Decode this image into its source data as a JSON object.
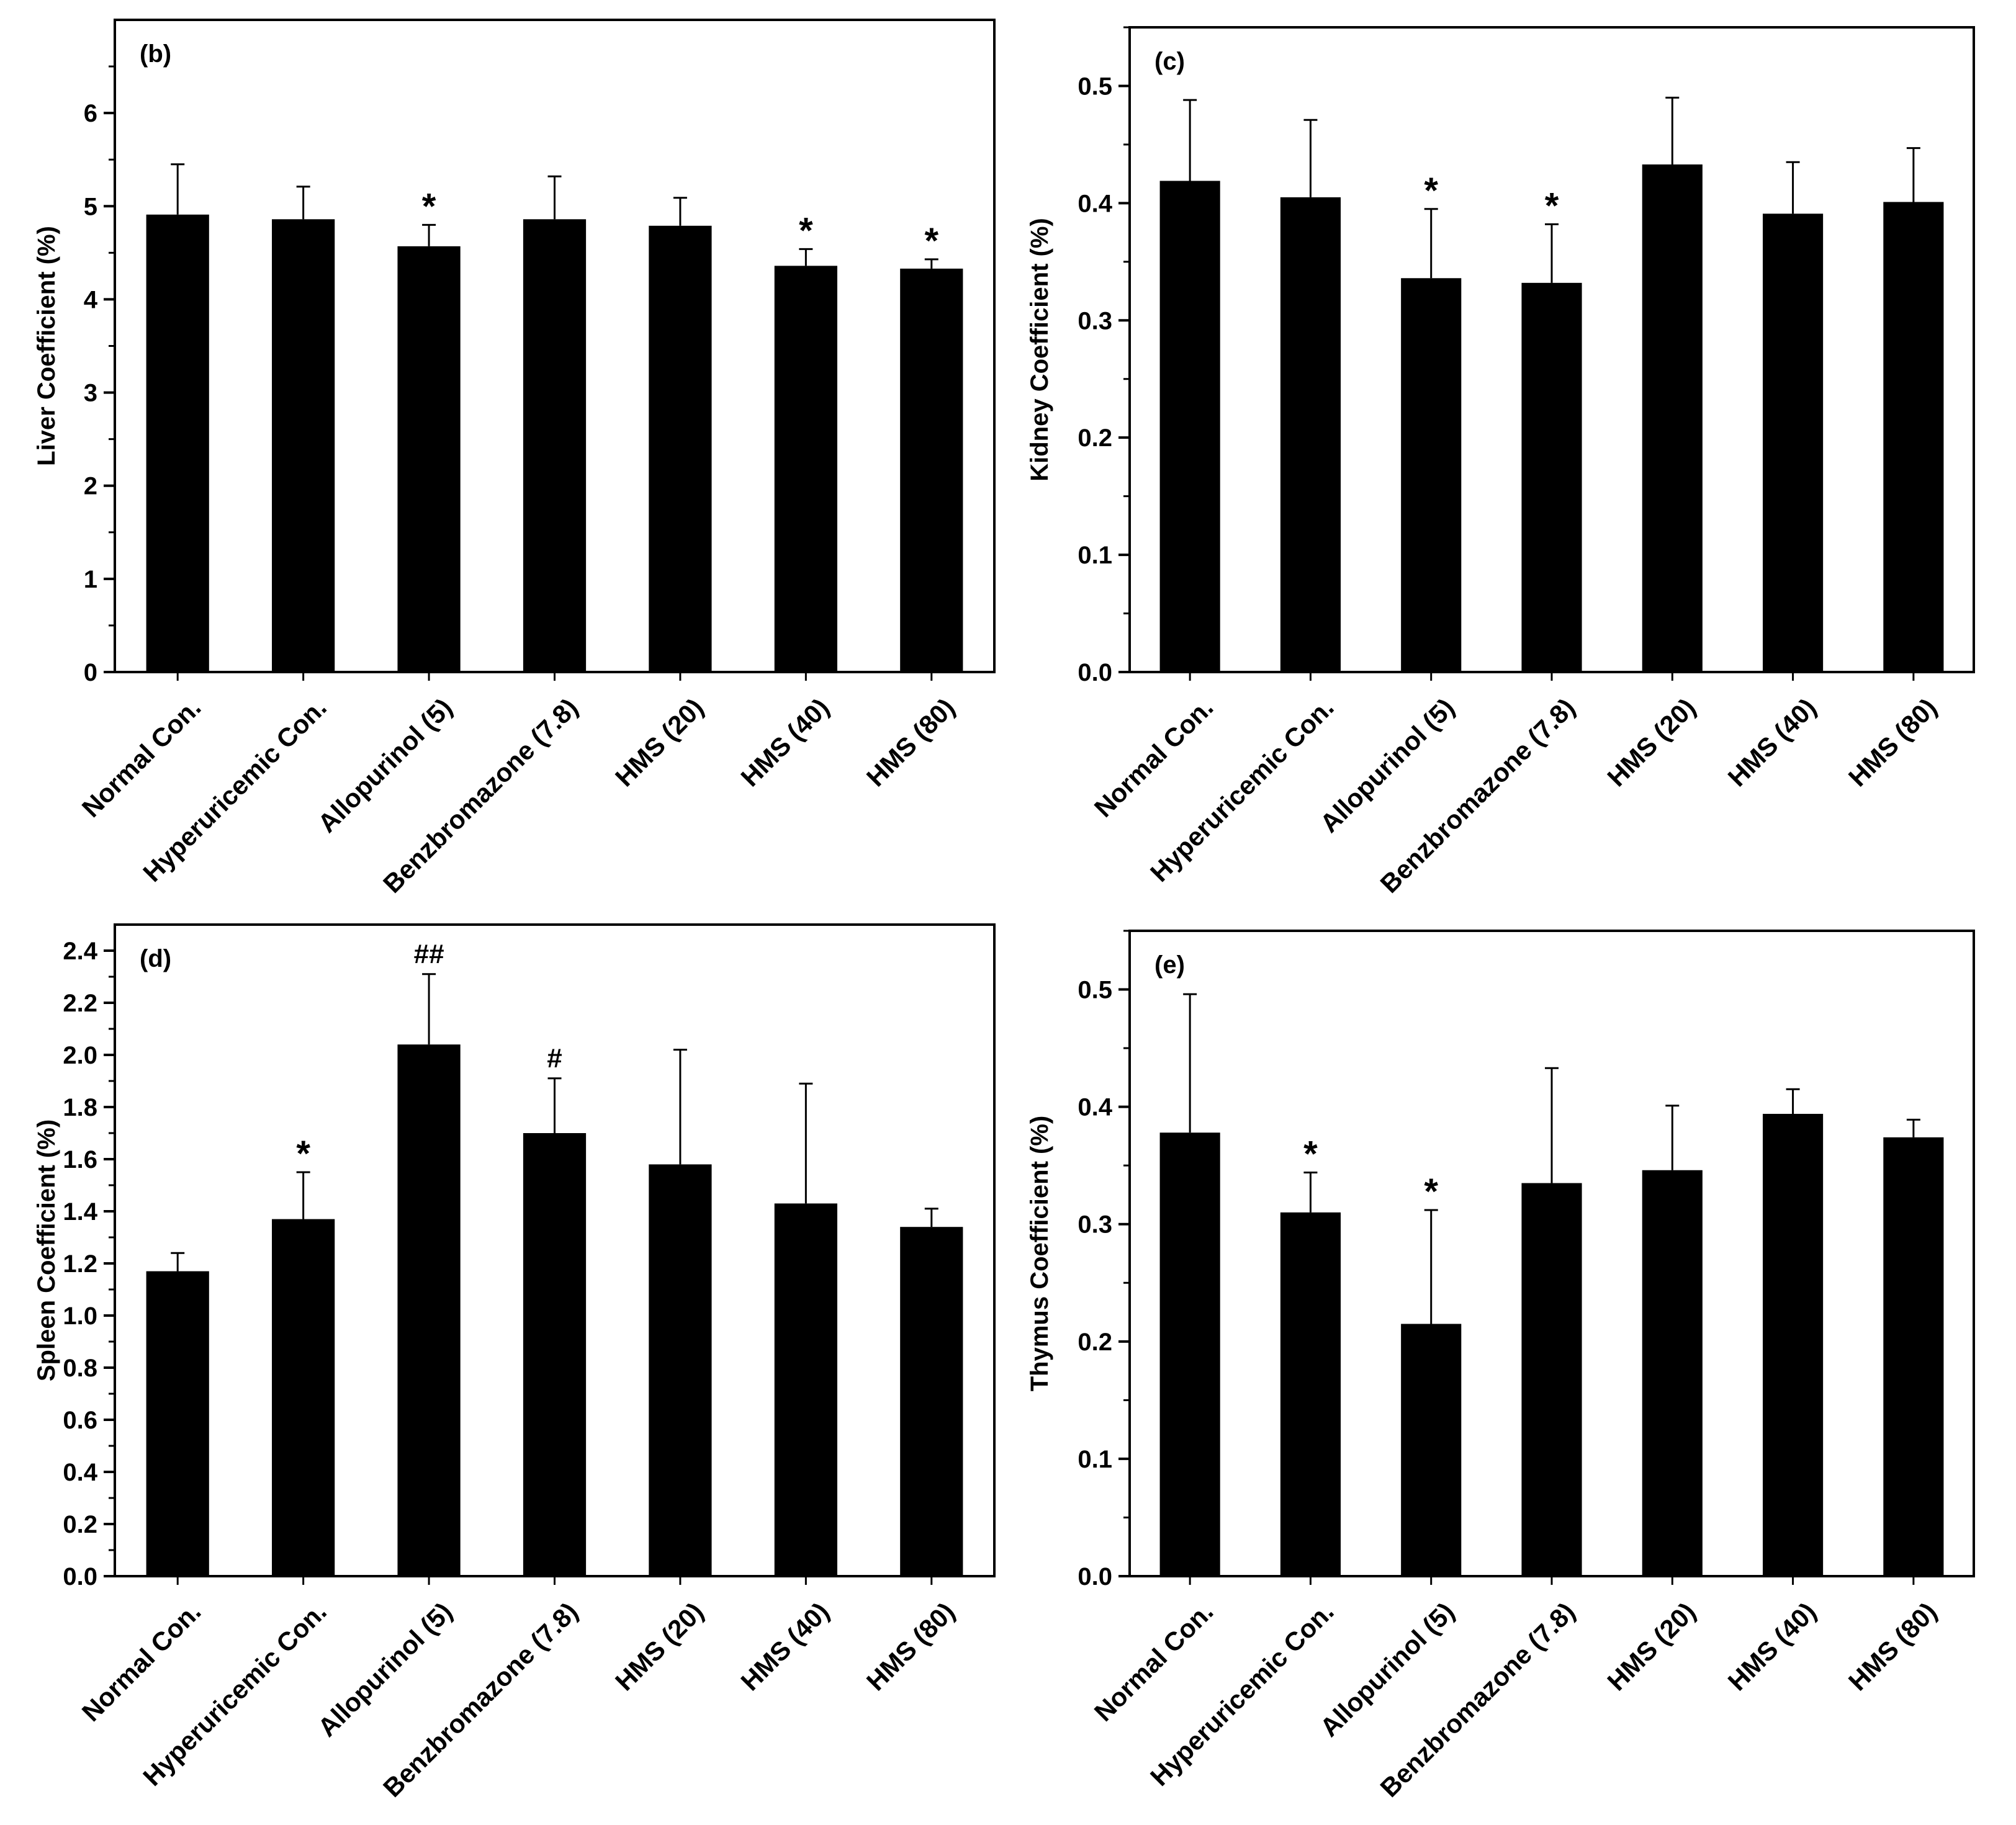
{
  "colors": {
    "bar": "#000000",
    "axis": "#000000",
    "background": "#ffffff"
  },
  "chart_data": [
    {
      "type": "bar",
      "panel_label": "(b)",
      "title": "",
      "xlabel": "",
      "ylabel": "Liver Coefficient (%)",
      "ylim": [
        0,
        7
      ],
      "yticks": [
        "0",
        "1",
        "2",
        "3",
        "4",
        "5",
        "6"
      ],
      "categories": [
        "Normal Con.",
        "Hyperuricemic Con.",
        "Allopurinol (5)",
        "Benzbromazone (7.8)",
        "HMS (20)",
        "HMS (40)",
        "HMS (80)"
      ],
      "values": [
        4.91,
        4.86,
        4.57,
        4.86,
        4.79,
        4.36,
        4.33
      ],
      "errors": [
        0.54,
        0.35,
        0.23,
        0.46,
        0.3,
        0.18,
        0.1
      ],
      "annotations": [
        "",
        "",
        "*",
        "",
        "",
        "*",
        "*"
      ]
    },
    {
      "type": "bar",
      "panel_label": "(c)",
      "title": "",
      "xlabel": "",
      "ylabel": "Kidney Coefficient (%)",
      "ylim": [
        0,
        0.55
      ],
      "yticks": [
        "0.0",
        "0.1",
        "0.2",
        "0.3",
        "0.4",
        "0.5"
      ],
      "categories": [
        "Normal Con.",
        "Hyperuricemic Con.",
        "Allopurinol (5)",
        "Benzbromazone (7.8)",
        "HMS (20)",
        "HMS (40)",
        "HMS (80)"
      ],
      "values": [
        0.419,
        0.405,
        0.336,
        0.332,
        0.433,
        0.391,
        0.401
      ],
      "errors": [
        0.069,
        0.066,
        0.059,
        0.05,
        0.057,
        0.044,
        0.046
      ],
      "annotations": [
        "",
        "",
        "*",
        "*",
        "",
        "",
        ""
      ]
    },
    {
      "type": "bar",
      "panel_label": "(d)",
      "title": "",
      "xlabel": "",
      "ylabel": "Spleen Coefficient (%)",
      "ylim": [
        0,
        2.5
      ],
      "yticks": [
        "0.0",
        "0.2",
        "0.4",
        "0.6",
        "0.8",
        "1.0",
        "1.2",
        "1.4",
        "1.6",
        "1.8",
        "2.0",
        "2.2",
        "2.4"
      ],
      "categories": [
        "Normal Con.",
        "Hyperuricemic Con.",
        "Allopurinol (5)",
        "Benzbromazone (7.8)",
        "HMS (20)",
        "HMS (40)",
        "HMS (80)"
      ],
      "values": [
        1.17,
        1.37,
        2.04,
        1.7,
        1.58,
        1.43,
        1.34
      ],
      "errors": [
        0.07,
        0.18,
        0.27,
        0.21,
        0.44,
        0.46,
        0.07
      ],
      "annotations": [
        "",
        "*",
        "##",
        "#",
        "",
        "",
        ""
      ]
    },
    {
      "type": "bar",
      "panel_label": "(e)",
      "title": "",
      "xlabel": "",
      "ylabel": "Thymus Coefficient (%)",
      "ylim": [
        0,
        0.55
      ],
      "yticks": [
        "0.0",
        "0.1",
        "0.2",
        "0.3",
        "0.4",
        "0.5"
      ],
      "categories": [
        "Normal Con.",
        "Hyperuricemic Con.",
        "Allopurinol (5)",
        "Benzbromazone (7.8)",
        "HMS (20)",
        "HMS (40)",
        "HMS (80)"
      ],
      "values": [
        0.378,
        0.31,
        0.215,
        0.335,
        0.346,
        0.394,
        0.374
      ],
      "errors": [
        0.118,
        0.034,
        0.097,
        0.098,
        0.055,
        0.021,
        0.015
      ],
      "annotations": [
        "",
        "*",
        "*",
        "",
        "",
        "",
        ""
      ]
    }
  ]
}
